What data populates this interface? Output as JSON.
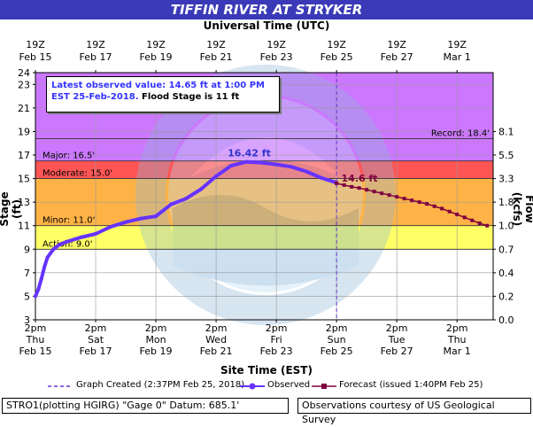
{
  "header": {
    "title": "TIFFIN RIVER AT STRYKER"
  },
  "axes": {
    "top_title": "Universal Time (UTC)",
    "bottom_title": "Site Time (EST)",
    "left_title": "Stage (ft)",
    "right_title": "Flow (kcfs)"
  },
  "info_box": {
    "line1": "Latest observed value: 14.65 ft at 1:00 PM",
    "line2_blue": "EST 25-Feb-2018.",
    "line2_black": " Flood Stage is 11 ft"
  },
  "legend": {
    "created": "Graph Created (2:37PM Feb 25, 2018)",
    "observed": "Observed",
    "forecast": "Forecast (issued 1:40PM Feb 25)"
  },
  "footer": {
    "left": "STRO1(plotting HGIRG) \"Gage 0\" Datum: 685.1'",
    "right": "Observations courtesy of US Geological Survey"
  },
  "chart_data": {
    "type": "line",
    "title": "TIFFIN RIVER AT STRYKER",
    "xlabel": "Site Time (EST)",
    "ylabel": "Stage (ft)",
    "y2label": "Flow (kcfs)",
    "x_unit": "days since Feb 15 2pm EST",
    "xlim": [
      0,
      15.2
    ],
    "ylim": [
      3,
      24
    ],
    "yticks": [
      3,
      5,
      7,
      9,
      11,
      13,
      15,
      17,
      19,
      21,
      23,
      24
    ],
    "bottom_ticks": [
      {
        "x": 0,
        "l1": "2pm",
        "l2": "Thu",
        "l3": "Feb 15"
      },
      {
        "x": 2,
        "l1": "2pm",
        "l2": "Sat",
        "l3": "Feb 17"
      },
      {
        "x": 4,
        "l1": "2pm",
        "l2": "Mon",
        "l3": "Feb 19"
      },
      {
        "x": 6,
        "l1": "2pm",
        "l2": "Wed",
        "l3": "Feb 21"
      },
      {
        "x": 8,
        "l1": "2pm",
        "l2": "Fri",
        "l3": "Feb 23"
      },
      {
        "x": 10,
        "l1": "2pm",
        "l2": "Sun",
        "l3": "Feb 25"
      },
      {
        "x": 12,
        "l1": "2pm",
        "l2": "Tue",
        "l3": "Feb 27"
      },
      {
        "x": 14,
        "l1": "2pm",
        "l2": "Thu",
        "l3": "Mar 1"
      }
    ],
    "top_ticks": [
      {
        "x": 0,
        "l1": "19Z",
        "l2": "Feb 15"
      },
      {
        "x": 2,
        "l1": "19Z",
        "l2": "Feb 17"
      },
      {
        "x": 4,
        "l1": "19Z",
        "l2": "Feb 19"
      },
      {
        "x": 6,
        "l1": "19Z",
        "l2": "Feb 21"
      },
      {
        "x": 8,
        "l1": "19Z",
        "l2": "Feb 23"
      },
      {
        "x": 10,
        "l1": "19Z",
        "l2": "Feb 25"
      },
      {
        "x": 12,
        "l1": "19Z",
        "l2": "Feb 27"
      },
      {
        "x": 14,
        "l1": "19Z",
        "l2": "Mar 1"
      }
    ],
    "flow_ticks": [
      {
        "stage": 3,
        "label": "0.0"
      },
      {
        "stage": 5,
        "label": "0.2"
      },
      {
        "stage": 7,
        "label": "0.4"
      },
      {
        "stage": 9,
        "label": "0.7"
      },
      {
        "stage": 11,
        "label": "1.0"
      },
      {
        "stage": 13,
        "label": "1.8"
      },
      {
        "stage": 15,
        "label": "3.3"
      },
      {
        "stage": 17,
        "label": "5.5"
      },
      {
        "stage": 19,
        "label": "8.1"
      }
    ],
    "bands": [
      {
        "name": "action",
        "from": 9,
        "to": 11,
        "color": "#ffff66"
      },
      {
        "name": "minor",
        "from": 11,
        "to": 15,
        "color": "#ffb347"
      },
      {
        "name": "moderate",
        "from": 15,
        "to": 16.5,
        "color": "#ff5555"
      },
      {
        "name": "major",
        "from": 16.5,
        "to": 24,
        "color": "#cc77ff"
      }
    ],
    "thresholds": [
      {
        "name": "action",
        "value": 9.0,
        "label": "Action: 9.0'"
      },
      {
        "name": "minor",
        "value": 11.0,
        "label": "Minor: 11.0'"
      },
      {
        "name": "moderate",
        "value": 15.0,
        "label": "Moderate: 15.0'"
      },
      {
        "name": "major",
        "value": 16.5,
        "label": "Major: 16.5'"
      },
      {
        "name": "record",
        "value": 18.4,
        "label": "Record: 18.4'"
      }
    ],
    "created_x": 10.0,
    "series": [
      {
        "name": "Observed",
        "color": "#6633ff",
        "x": [
          0.0,
          0.1,
          0.2,
          0.3,
          0.4,
          0.6,
          0.8,
          1.0,
          1.5,
          2.0,
          2.5,
          3.0,
          3.5,
          4.0,
          4.5,
          5.0,
          5.5,
          6.0,
          6.5,
          7.0,
          7.5,
          8.0,
          8.5,
          9.0,
          9.5,
          10.0
        ],
        "y": [
          5.0,
          5.6,
          6.5,
          7.5,
          8.3,
          9.0,
          9.4,
          9.6,
          10.0,
          10.3,
          10.9,
          11.3,
          11.6,
          11.8,
          12.8,
          13.3,
          14.1,
          15.2,
          16.1,
          16.42,
          16.35,
          16.2,
          16.0,
          15.6,
          15.05,
          14.65
        ]
      },
      {
        "name": "Forecast",
        "color": "#800040",
        "x": [
          10.0,
          10.25,
          10.5,
          10.75,
          11.0,
          11.25,
          11.5,
          11.75,
          12.0,
          12.25,
          12.5,
          12.75,
          13.0,
          13.25,
          13.5,
          13.75,
          14.0,
          14.25,
          14.5,
          14.75,
          15.0
        ],
        "y": [
          14.6,
          14.45,
          14.3,
          14.2,
          14.05,
          13.9,
          13.75,
          13.6,
          13.45,
          13.3,
          13.15,
          13.0,
          12.85,
          12.65,
          12.45,
          12.2,
          11.95,
          11.7,
          11.45,
          11.2,
          11.0
        ]
      }
    ],
    "annotations": [
      {
        "x": 7.1,
        "y": 16.42,
        "text": "16.42 ft",
        "color": "#3333cc"
      },
      {
        "x": 10.1,
        "y": 14.6,
        "text": "14.6 ft",
        "color": "#800040"
      }
    ]
  }
}
